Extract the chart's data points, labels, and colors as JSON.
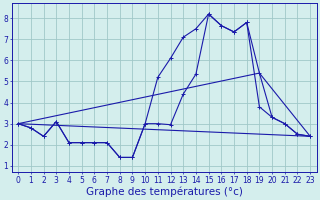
{
  "xlabel": "Graphe des températures (°c)",
  "xlim": [
    -0.5,
    23.5
  ],
  "ylim": [
    0.7,
    8.7
  ],
  "xticks": [
    0,
    1,
    2,
    3,
    4,
    5,
    6,
    7,
    8,
    9,
    10,
    11,
    12,
    13,
    14,
    15,
    16,
    17,
    18,
    19,
    20,
    21,
    22,
    23
  ],
  "yticks": [
    1,
    2,
    3,
    4,
    5,
    6,
    7,
    8
  ],
  "background_color": "#d4eeed",
  "grid_color": "#a0c8c8",
  "line_color": "#1a1aaa",
  "line1_x": [
    0,
    1,
    2,
    3,
    4,
    5,
    6,
    7,
    8,
    9,
    10,
    11,
    12,
    13,
    14,
    15,
    16,
    17,
    18,
    19,
    20,
    21,
    22,
    23
  ],
  "line1_y": [
    3.0,
    2.8,
    2.4,
    3.1,
    2.1,
    2.1,
    2.1,
    2.1,
    1.4,
    1.4,
    3.0,
    3.0,
    2.95,
    4.4,
    5.35,
    8.2,
    7.65,
    7.35,
    7.8,
    3.8,
    3.3,
    3.0,
    2.5,
    2.4
  ],
  "line2_x": [
    0,
    1,
    2,
    3,
    4,
    5,
    6,
    7,
    8,
    9,
    10,
    11,
    12,
    13,
    14,
    15,
    16,
    17,
    18,
    19,
    20,
    21,
    22,
    23
  ],
  "line2_y": [
    3.0,
    2.8,
    2.4,
    3.1,
    2.1,
    2.1,
    2.1,
    2.1,
    1.4,
    1.4,
    3.0,
    5.2,
    6.1,
    7.1,
    7.5,
    8.2,
    7.65,
    7.35,
    7.8,
    5.4,
    3.3,
    3.0,
    2.5,
    2.4
  ],
  "line3_x": [
    0,
    23
  ],
  "line3_y": [
    3.0,
    2.4
  ],
  "line4_x": [
    0,
    19,
    23
  ],
  "line4_y": [
    3.0,
    5.4,
    2.4
  ],
  "tick_fontsize": 5.5,
  "label_fontsize": 7.5
}
